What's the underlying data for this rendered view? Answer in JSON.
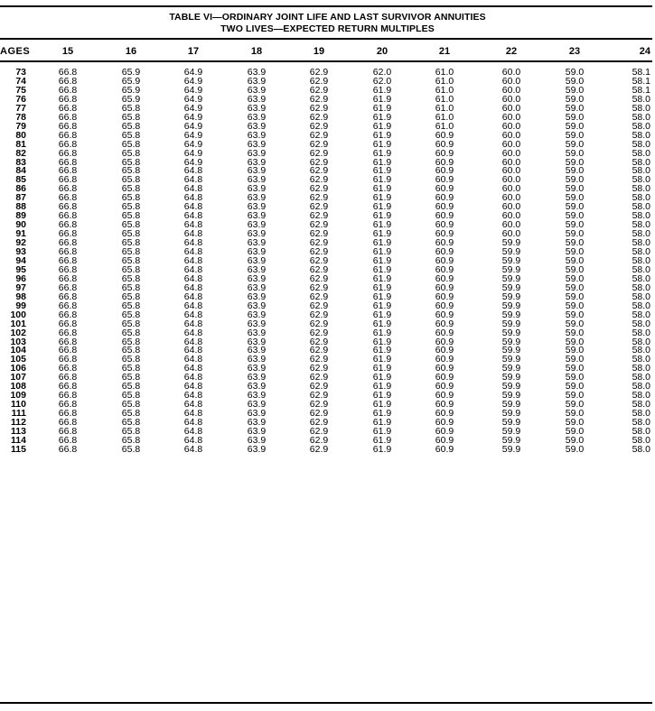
{
  "table": {
    "title_line1": "TABLE VI—ORDINARY JOINT LIFE AND LAST SURVIVOR ANNUITIES",
    "title_line2": "TWO LIVES—EXPECTED RETURN MULTIPLES",
    "row_header": "AGES",
    "columns": [
      "15",
      "16",
      "17",
      "18",
      "19",
      "20",
      "21",
      "22",
      "23",
      "24"
    ],
    "rows": [
      {
        "age": "73",
        "values": [
          "66.8",
          "65.9",
          "64.9",
          "63.9",
          "62.9",
          "62.0",
          "61.0",
          "60.0",
          "59.0",
          "58.1"
        ]
      },
      {
        "age": "74",
        "values": [
          "66.8",
          "65.9",
          "64.9",
          "63.9",
          "62.9",
          "62.0",
          "61.0",
          "60.0",
          "59.0",
          "58.1"
        ]
      },
      {
        "age": "75",
        "values": [
          "66.8",
          "65.9",
          "64.9",
          "63.9",
          "62.9",
          "61.9",
          "61.0",
          "60.0",
          "59.0",
          "58.1"
        ]
      },
      {
        "age": "76",
        "values": [
          "66.8",
          "65.9",
          "64.9",
          "63.9",
          "62.9",
          "61.9",
          "61.0",
          "60.0",
          "59.0",
          "58.0"
        ]
      },
      {
        "age": "77",
        "values": [
          "66.8",
          "65.8",
          "64.9",
          "63.9",
          "62.9",
          "61.9",
          "61.0",
          "60.0",
          "59.0",
          "58.0"
        ]
      },
      {
        "age": "78",
        "values": [
          "66.8",
          "65.8",
          "64.9",
          "63.9",
          "62.9",
          "61.9",
          "61.0",
          "60.0",
          "59.0",
          "58.0"
        ]
      },
      {
        "age": "79",
        "values": [
          "66.8",
          "65.8",
          "64.9",
          "63.9",
          "62.9",
          "61.9",
          "61.0",
          "60.0",
          "59.0",
          "58.0"
        ]
      },
      {
        "age": "80",
        "values": [
          "66.8",
          "65.8",
          "64.9",
          "63.9",
          "62.9",
          "61.9",
          "60.9",
          "60.0",
          "59.0",
          "58.0"
        ]
      },
      {
        "age": "81",
        "values": [
          "66.8",
          "65.8",
          "64.9",
          "63.9",
          "62.9",
          "61.9",
          "60.9",
          "60.0",
          "59.0",
          "58.0"
        ]
      },
      {
        "age": "82",
        "values": [
          "66.8",
          "65.8",
          "64.9",
          "63.9",
          "62.9",
          "61.9",
          "60.9",
          "60.0",
          "59.0",
          "58.0"
        ]
      },
      {
        "age": "83",
        "values": [
          "66.8",
          "65.8",
          "64.9",
          "63.9",
          "62.9",
          "61.9",
          "60.9",
          "60.0",
          "59.0",
          "58.0"
        ]
      },
      {
        "age": "84",
        "values": [
          "66.8",
          "65.8",
          "64.8",
          "63.9",
          "62.9",
          "61.9",
          "60.9",
          "60.0",
          "59.0",
          "58.0"
        ]
      },
      {
        "age": "85",
        "values": [
          "66.8",
          "65.8",
          "64.8",
          "63.9",
          "62.9",
          "61.9",
          "60.9",
          "60.0",
          "59.0",
          "58.0"
        ]
      },
      {
        "age": "86",
        "values": [
          "66.8",
          "65.8",
          "64.8",
          "63.9",
          "62.9",
          "61.9",
          "60.9",
          "60.0",
          "59.0",
          "58.0"
        ]
      },
      {
        "age": "87",
        "values": [
          "66.8",
          "65.8",
          "64.8",
          "63.9",
          "62.9",
          "61.9",
          "60.9",
          "60.0",
          "59.0",
          "58.0"
        ]
      },
      {
        "age": "88",
        "values": [
          "66.8",
          "65.8",
          "64.8",
          "63.9",
          "62.9",
          "61.9",
          "60.9",
          "60.0",
          "59.0",
          "58.0"
        ]
      },
      {
        "age": "89",
        "values": [
          "66.8",
          "65.8",
          "64.8",
          "63.9",
          "62.9",
          "61.9",
          "60.9",
          "60.0",
          "59.0",
          "58.0"
        ]
      },
      {
        "age": "90",
        "values": [
          "66.8",
          "65.8",
          "64.8",
          "63.9",
          "62.9",
          "61.9",
          "60.9",
          "60.0",
          "59.0",
          "58.0"
        ]
      },
      {
        "age": "91",
        "values": [
          "66.8",
          "65.8",
          "64.8",
          "63.9",
          "62.9",
          "61.9",
          "60.9",
          "60.0",
          "59.0",
          "58.0"
        ]
      },
      {
        "age": "92",
        "values": [
          "66.8",
          "65.8",
          "64.8",
          "63.9",
          "62.9",
          "61.9",
          "60.9",
          "59.9",
          "59.0",
          "58.0"
        ]
      },
      {
        "age": "93",
        "values": [
          "66.8",
          "65.8",
          "64.8",
          "63.9",
          "62.9",
          "61.9",
          "60.9",
          "59.9",
          "59.0",
          "58.0"
        ]
      },
      {
        "age": "94",
        "values": [
          "66.8",
          "65.8",
          "64.8",
          "63.9",
          "62.9",
          "61.9",
          "60.9",
          "59.9",
          "59.0",
          "58.0"
        ]
      },
      {
        "age": "95",
        "values": [
          "66.8",
          "65.8",
          "64.8",
          "63.9",
          "62.9",
          "61.9",
          "60.9",
          "59.9",
          "59.0",
          "58.0"
        ]
      },
      {
        "age": "96",
        "values": [
          "66.8",
          "65.8",
          "64.8",
          "63.9",
          "62.9",
          "61.9",
          "60.9",
          "59.9",
          "59.0",
          "58.0"
        ]
      },
      {
        "age": "97",
        "values": [
          "66.8",
          "65.8",
          "64.8",
          "63.9",
          "62.9",
          "61.9",
          "60.9",
          "59.9",
          "59.0",
          "58.0"
        ]
      },
      {
        "age": "98",
        "values": [
          "66.8",
          "65.8",
          "64.8",
          "63.9",
          "62.9",
          "61.9",
          "60.9",
          "59.9",
          "59.0",
          "58.0"
        ]
      },
      {
        "age": "99",
        "values": [
          "66.8",
          "65.8",
          "64.8",
          "63.9",
          "62.9",
          "61.9",
          "60.9",
          "59.9",
          "59.0",
          "58.0"
        ]
      },
      {
        "age": "100",
        "values": [
          "66.8",
          "65.8",
          "64.8",
          "63.9",
          "62.9",
          "61.9",
          "60.9",
          "59.9",
          "59.0",
          "58.0"
        ]
      },
      {
        "age": "101",
        "values": [
          "66.8",
          "65.8",
          "64.8",
          "63.9",
          "62.9",
          "61.9",
          "60.9",
          "59.9",
          "59.0",
          "58.0"
        ]
      },
      {
        "age": "102",
        "values": [
          "66.8",
          "65.8",
          "64.8",
          "63.9",
          "62.9",
          "61.9",
          "60.9",
          "59.9",
          "59.0",
          "58.0"
        ]
      },
      {
        "age": "103",
        "values": [
          "66.8",
          "65.8",
          "64.8",
          "63.9",
          "62.9",
          "61.9",
          "60.9",
          "59.9",
          "59.0",
          "58.0"
        ]
      },
      {
        "age": "104",
        "values": [
          "66.8",
          "65.8",
          "64.8",
          "63.9",
          "62.9",
          "61.9",
          "60.9",
          "59.9",
          "59.0",
          "58.0"
        ]
      },
      {
        "age": "105",
        "values": [
          "66.8",
          "65.8",
          "64.8",
          "63.9",
          "62.9",
          "61.9",
          "60.9",
          "59.9",
          "59.0",
          "58.0"
        ]
      },
      {
        "age": "106",
        "values": [
          "66.8",
          "65.8",
          "64.8",
          "63.9",
          "62.9",
          "61.9",
          "60.9",
          "59.9",
          "59.0",
          "58.0"
        ]
      },
      {
        "age": "107",
        "values": [
          "66.8",
          "65.8",
          "64.8",
          "63.9",
          "62.9",
          "61.9",
          "60.9",
          "59.9",
          "59.0",
          "58.0"
        ]
      },
      {
        "age": "108",
        "values": [
          "66.8",
          "65.8",
          "64.8",
          "63.9",
          "62.9",
          "61.9",
          "60.9",
          "59.9",
          "59.0",
          "58.0"
        ]
      },
      {
        "age": "109",
        "values": [
          "66.8",
          "65.8",
          "64.8",
          "63.9",
          "62.9",
          "61.9",
          "60.9",
          "59.9",
          "59.0",
          "58.0"
        ]
      },
      {
        "age": "110",
        "values": [
          "66.8",
          "65.8",
          "64.8",
          "63.9",
          "62.9",
          "61.9",
          "60.9",
          "59.9",
          "59.0",
          "58.0"
        ]
      },
      {
        "age": "111",
        "values": [
          "66.8",
          "65.8",
          "64.8",
          "63.9",
          "62.9",
          "61.9",
          "60.9",
          "59.9",
          "59.0",
          "58.0"
        ]
      },
      {
        "age": "112",
        "values": [
          "66.8",
          "65.8",
          "64.8",
          "63.9",
          "62.9",
          "61.9",
          "60.9",
          "59.9",
          "59.0",
          "58.0"
        ]
      },
      {
        "age": "113",
        "values": [
          "66.8",
          "65.8",
          "64.8",
          "63.9",
          "62.9",
          "61.9",
          "60.9",
          "59.9",
          "59.0",
          "58.0"
        ]
      },
      {
        "age": "114",
        "values": [
          "66.8",
          "65.8",
          "64.8",
          "63.9",
          "62.9",
          "61.9",
          "60.9",
          "59.9",
          "59.0",
          "58.0"
        ]
      },
      {
        "age": "115",
        "values": [
          "66.8",
          "65.8",
          "64.8",
          "63.9",
          "62.9",
          "61.9",
          "60.9",
          "59.9",
          "59.0",
          "58.0"
        ]
      }
    ]
  }
}
